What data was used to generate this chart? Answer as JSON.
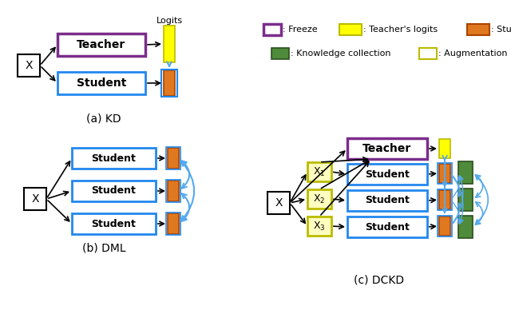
{
  "bg_color": "#ffffff",
  "freeze_color": "#7B2D8B",
  "teacher_logits_color": "#FFFF00",
  "student_logits_color": "#E07820",
  "knowledge_color": "#4E8B3A",
  "augmentation_color": "#FFFF99",
  "student_box_color": "#2288EE",
  "teacher_box_color": "#7B2D8B",
  "arrow_color": "#111111",
  "mutual_arrow_color": "#55AAEE",
  "labels": {
    "kd": "(a) KD",
    "dml": "(b) DML",
    "dckd": "(c) DCKD"
  }
}
